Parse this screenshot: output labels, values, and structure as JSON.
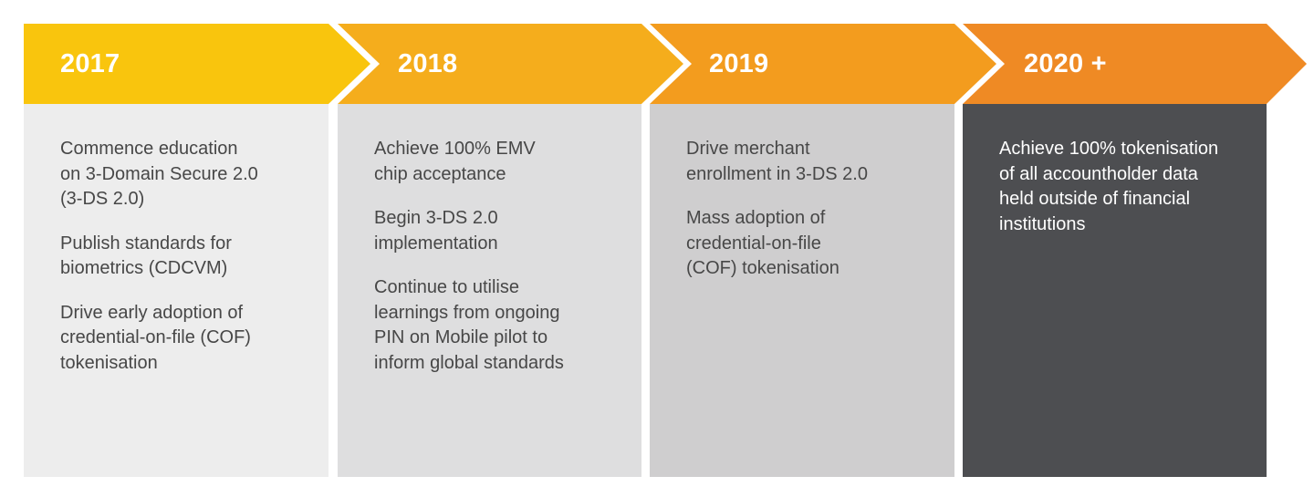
{
  "colors": {
    "arrow_1": "#f9c50d",
    "arrow_2": "#f5ad1c",
    "arrow_3": "#f39c1e",
    "arrow_4": "#ef8a24",
    "panel_1": "#ededed",
    "panel_2": "#dededf",
    "panel_3": "#cfcecf",
    "panel_4": "#4d4e51",
    "text_dark": "#474747",
    "text_light": "#ffffff"
  },
  "timeline": [
    {
      "year": "2017",
      "items": [
        "Commence education\non 3-Domain Secure 2.0\n(3-DS 2.0)",
        "Publish standards for\nbiometrics (CDCVM)",
        "Drive early adoption of\ncredential-on-file (COF)\ntokenisation"
      ]
    },
    {
      "year": "2018",
      "items": [
        "Achieve 100% EMV\nchip acceptance",
        "Begin 3-DS 2.0\nimplementation",
        "Continue to utilise\nlearnings from ongoing\nPIN on Mobile pilot to\ninform global standards"
      ]
    },
    {
      "year": "2019",
      "items": [
        "Drive merchant\nenrollment in 3-DS 2.0",
        "Mass adoption of\ncredential-on-file\n(COF) tokenisation"
      ]
    },
    {
      "year": "2020 +",
      "items": [
        "Achieve 100% tokenisation\nof all accountholder data\nheld outside of financial\ninstitutions"
      ]
    }
  ]
}
